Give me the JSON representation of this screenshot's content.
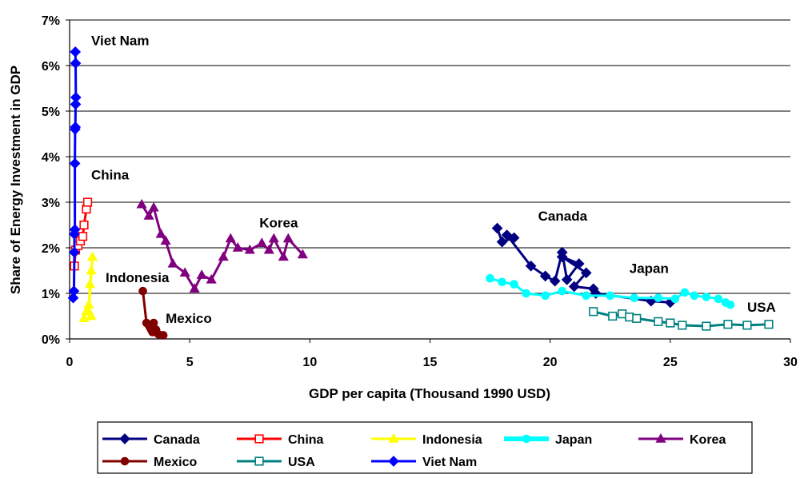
{
  "chart_data": {
    "type": "line",
    "xlabel": "GDP per capita (Thousand 1990 USD)",
    "ylabel": "Share of Energy Investment in GDP",
    "xlim": [
      0,
      30
    ],
    "ylim": [
      0,
      7
    ],
    "x_ticks": [
      "0",
      "5",
      "10",
      "15",
      "20",
      "25",
      "30"
    ],
    "y_ticks": [
      "0%",
      "1%",
      "2%",
      "3%",
      "4%",
      "5%",
      "6%",
      "7%"
    ],
    "grid": "horizontal",
    "legend_position": "bottom",
    "series": [
      {
        "name": "Canada",
        "color": "#000080",
        "marker": "diamond",
        "marker_fill": "#000080",
        "points": [
          [
            17.8,
            2.43
          ],
          [
            18.0,
            2.13
          ],
          [
            18.5,
            2.22
          ],
          [
            18.2,
            2.28
          ],
          [
            19.2,
            1.6
          ],
          [
            19.8,
            1.38
          ],
          [
            20.2,
            1.27
          ],
          [
            20.5,
            1.9
          ],
          [
            20.7,
            1.3
          ],
          [
            21.2,
            1.65
          ],
          [
            20.5,
            1.8
          ],
          [
            21.5,
            1.45
          ],
          [
            21.0,
            1.15
          ],
          [
            21.8,
            1.1
          ],
          [
            21.9,
            1.0
          ],
          [
            24.2,
            0.83
          ],
          [
            25.0,
            0.8
          ]
        ]
      },
      {
        "name": "China",
        "color": "#ff0000",
        "marker": "square",
        "marker_fill": "#ffffff",
        "points": [
          [
            0.2,
            1.6
          ],
          [
            0.25,
            1.95
          ],
          [
            0.35,
            2.05
          ],
          [
            0.45,
            2.15
          ],
          [
            0.55,
            2.25
          ],
          [
            0.6,
            2.5
          ],
          [
            0.7,
            2.85
          ],
          [
            0.75,
            3.0
          ]
        ]
      },
      {
        "name": "Indonesia",
        "color": "#ffff00",
        "marker": "triangle",
        "marker_fill": "#ffff00",
        "points": [
          [
            0.6,
            0.45
          ],
          [
            0.7,
            0.6
          ],
          [
            0.8,
            0.75
          ],
          [
            0.85,
            1.2
          ],
          [
            0.9,
            1.5
          ],
          [
            0.95,
            1.8
          ],
          [
            0.8,
            0.6
          ],
          [
            0.9,
            0.5
          ]
        ]
      },
      {
        "name": "Japan",
        "color": "#00ffff",
        "marker": "circle",
        "marker_fill": "#00ffff",
        "points": [
          [
            17.5,
            1.33
          ],
          [
            18.0,
            1.25
          ],
          [
            18.5,
            1.2
          ],
          [
            19.0,
            1.0
          ],
          [
            19.8,
            0.95
          ],
          [
            20.5,
            1.05
          ],
          [
            21.5,
            0.95
          ],
          [
            22.5,
            0.95
          ],
          [
            23.5,
            0.9
          ],
          [
            24.5,
            0.9
          ],
          [
            25.2,
            0.88
          ],
          [
            25.6,
            1.02
          ],
          [
            26.0,
            0.95
          ],
          [
            26.5,
            0.92
          ],
          [
            27.0,
            0.88
          ],
          [
            27.5,
            0.75
          ],
          [
            27.3,
            0.8
          ]
        ]
      },
      {
        "name": "Korea",
        "color": "#800080",
        "marker": "triangle",
        "marker_fill": "#800080",
        "points": [
          [
            3.0,
            2.95
          ],
          [
            3.3,
            2.7
          ],
          [
            3.5,
            2.88
          ],
          [
            3.8,
            2.3
          ],
          [
            4.0,
            2.15
          ],
          [
            4.3,
            1.65
          ],
          [
            4.8,
            1.45
          ],
          [
            5.2,
            1.1
          ],
          [
            5.5,
            1.4
          ],
          [
            5.9,
            1.3
          ],
          [
            6.4,
            1.8
          ],
          [
            6.7,
            2.2
          ],
          [
            7.0,
            2.0
          ],
          [
            7.5,
            1.95
          ],
          [
            8.0,
            2.1
          ],
          [
            8.3,
            1.95
          ],
          [
            8.5,
            2.2
          ],
          [
            8.9,
            1.8
          ],
          [
            9.1,
            2.2
          ],
          [
            9.7,
            1.85
          ]
        ]
      },
      {
        "name": "Mexico",
        "color": "#800000",
        "marker": "circle",
        "marker_fill": "#800000",
        "points": [
          [
            3.05,
            1.05
          ],
          [
            3.2,
            0.35
          ],
          [
            3.3,
            0.3
          ],
          [
            3.35,
            0.25
          ],
          [
            3.4,
            0.2
          ],
          [
            3.45,
            0.15
          ],
          [
            3.5,
            0.35
          ],
          [
            3.6,
            0.2
          ],
          [
            3.7,
            0.1
          ],
          [
            3.9,
            0.08
          ]
        ]
      },
      {
        "name": "USA",
        "color": "#008080",
        "marker": "square",
        "marker_fill": "#ffffff",
        "points": [
          [
            21.8,
            0.6
          ],
          [
            22.6,
            0.5
          ],
          [
            23.0,
            0.55
          ],
          [
            23.3,
            0.48
          ],
          [
            23.6,
            0.45
          ],
          [
            24.5,
            0.38
          ],
          [
            25.0,
            0.35
          ],
          [
            25.5,
            0.3
          ],
          [
            26.5,
            0.28
          ],
          [
            27.4,
            0.32
          ],
          [
            28.2,
            0.3
          ],
          [
            29.1,
            0.32
          ]
        ]
      },
      {
        "name": "Viet Nam",
        "color": "#0000ff",
        "marker": "diamond",
        "marker_fill": "#0000ff",
        "points": [
          [
            0.15,
            0.9
          ],
          [
            0.18,
            1.05
          ],
          [
            0.2,
            1.9
          ],
          [
            0.2,
            2.3
          ],
          [
            0.22,
            2.4
          ],
          [
            0.22,
            3.85
          ],
          [
            0.23,
            4.6
          ],
          [
            0.24,
            4.65
          ],
          [
            0.25,
            5.15
          ],
          [
            0.26,
            5.3
          ],
          [
            0.25,
            6.05
          ],
          [
            0.24,
            6.3
          ]
        ]
      }
    ],
    "annotations": [
      {
        "text": "Viet Nam",
        "x": 0.9,
        "y": 6.45
      },
      {
        "text": "China",
        "x": 0.9,
        "y": 3.5
      },
      {
        "text": "Indonesia",
        "x": 1.5,
        "y": 1.25
      },
      {
        "text": "Mexico",
        "x": 4.0,
        "y": 0.35
      },
      {
        "text": "Korea",
        "x": 7.9,
        "y": 2.45
      },
      {
        "text": "Canada",
        "x": 19.5,
        "y": 2.6
      },
      {
        "text": "Japan",
        "x": 23.3,
        "y": 1.45
      },
      {
        "text": "USA",
        "x": 28.2,
        "y": 0.6
      }
    ]
  }
}
